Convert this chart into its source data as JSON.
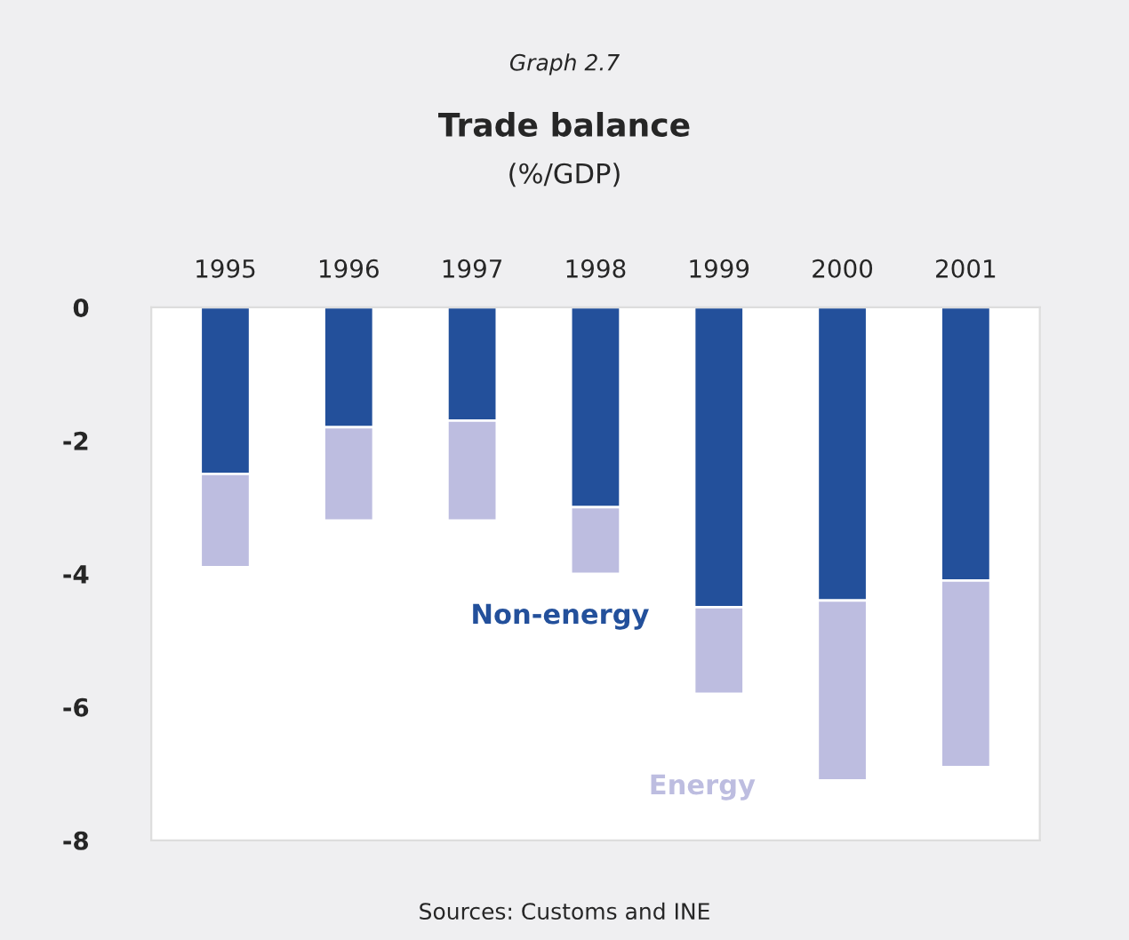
{
  "chart_data": {
    "type": "bar",
    "title": "Trade balance",
    "subtitle": "(%/GDP)",
    "annotations": [
      "Graph 2.7",
      "Sources: Customs and INE"
    ],
    "categories": [
      "1995",
      "1996",
      "1997",
      "1998",
      "1999",
      "2000",
      "2001"
    ],
    "stacked": true,
    "series": [
      {
        "name": "Non-energy",
        "color": "#23509b",
        "values": [
          -2.5,
          -1.8,
          -1.7,
          -3.0,
          -4.5,
          -4.4,
          -4.1
        ]
      },
      {
        "name": "Energy",
        "color": "#bdbde0",
        "values": [
          -1.4,
          -1.4,
          -1.5,
          -1.0,
          -1.3,
          -2.7,
          -2.8
        ]
      }
    ],
    "ylim": [
      -8,
      0
    ],
    "yticks": [
      -8,
      -6,
      -4,
      -2,
      0
    ],
    "grid": false,
    "legend": false
  }
}
